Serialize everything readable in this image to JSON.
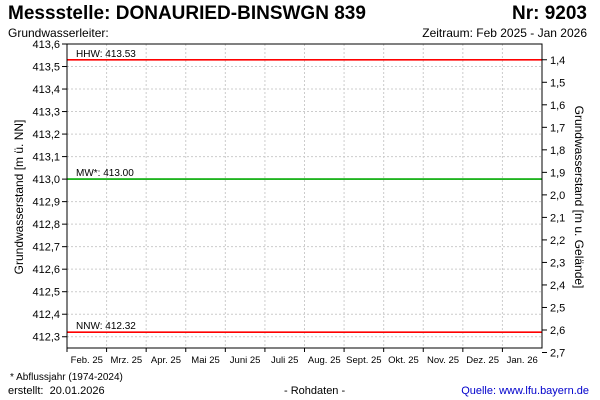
{
  "header": {
    "title": "Messstelle: DONAURIED-BINSWGN 839",
    "nr": "Nr: 9203",
    "aquifer_label": "Grundwasserleiter:",
    "period": "Zeitraum: Feb 2025 - Jan 2026"
  },
  "footer": {
    "footnote": "* Abflussjahr (1974-2024)",
    "created_label": "erstellt:",
    "created_date": "20.01.2026",
    "rawdata": "- Rohdaten -",
    "source_label": "Quelle:",
    "source_url": "www.lfu.bayern.de"
  },
  "chart_data": {
    "type": "line",
    "ylabel_left": "Grundwasserstand [m ü. NN]",
    "ylabel_right": "Grundwasserstand [m u. Gelände]",
    "ylim_left": [
      412.25,
      413.6
    ],
    "yticks_left": [
      "413,6",
      "413,5",
      "413,4",
      "413,3",
      "413,2",
      "413,1",
      "413,0",
      "412,9",
      "412,8",
      "412,7",
      "412,6",
      "412,5",
      "412,4",
      "412,3"
    ],
    "yticks_left_values": [
      413.6,
      413.5,
      413.4,
      413.3,
      413.2,
      413.1,
      413.0,
      412.9,
      412.8,
      412.7,
      412.6,
      412.5,
      412.4,
      412.3
    ],
    "yticks_right": [
      "1,4",
      "1,5",
      "1,6",
      "1,7",
      "1,8",
      "1,9",
      "2,0",
      "2,1",
      "2,2",
      "2,3",
      "2,4",
      "2,5",
      "2,6",
      "2,7"
    ],
    "yticks_right_values": [
      1.4,
      1.5,
      1.6,
      1.7,
      1.8,
      1.9,
      2.0,
      2.1,
      2.2,
      2.3,
      2.4,
      2.5,
      2.6,
      2.7
    ],
    "x_categories": [
      "Feb. 25",
      "Mrz. 25",
      "Apr. 25",
      "Mai 25",
      "Juni 25",
      "Juli 25",
      "Aug. 25",
      "Sept. 25",
      "Okt. 25",
      "Nov. 25",
      "Dez. 25",
      "Jan. 26"
    ],
    "grid": true,
    "reference_lines": [
      {
        "label": "HHW: 413.53",
        "value": 413.53,
        "color": "#ff0000"
      },
      {
        "label": "MW*: 413.00",
        "value": 413.0,
        "color": "#00aa00"
      },
      {
        "label": "NNW: 412.32",
        "value": 412.32,
        "color": "#ff0000"
      }
    ],
    "series": []
  }
}
